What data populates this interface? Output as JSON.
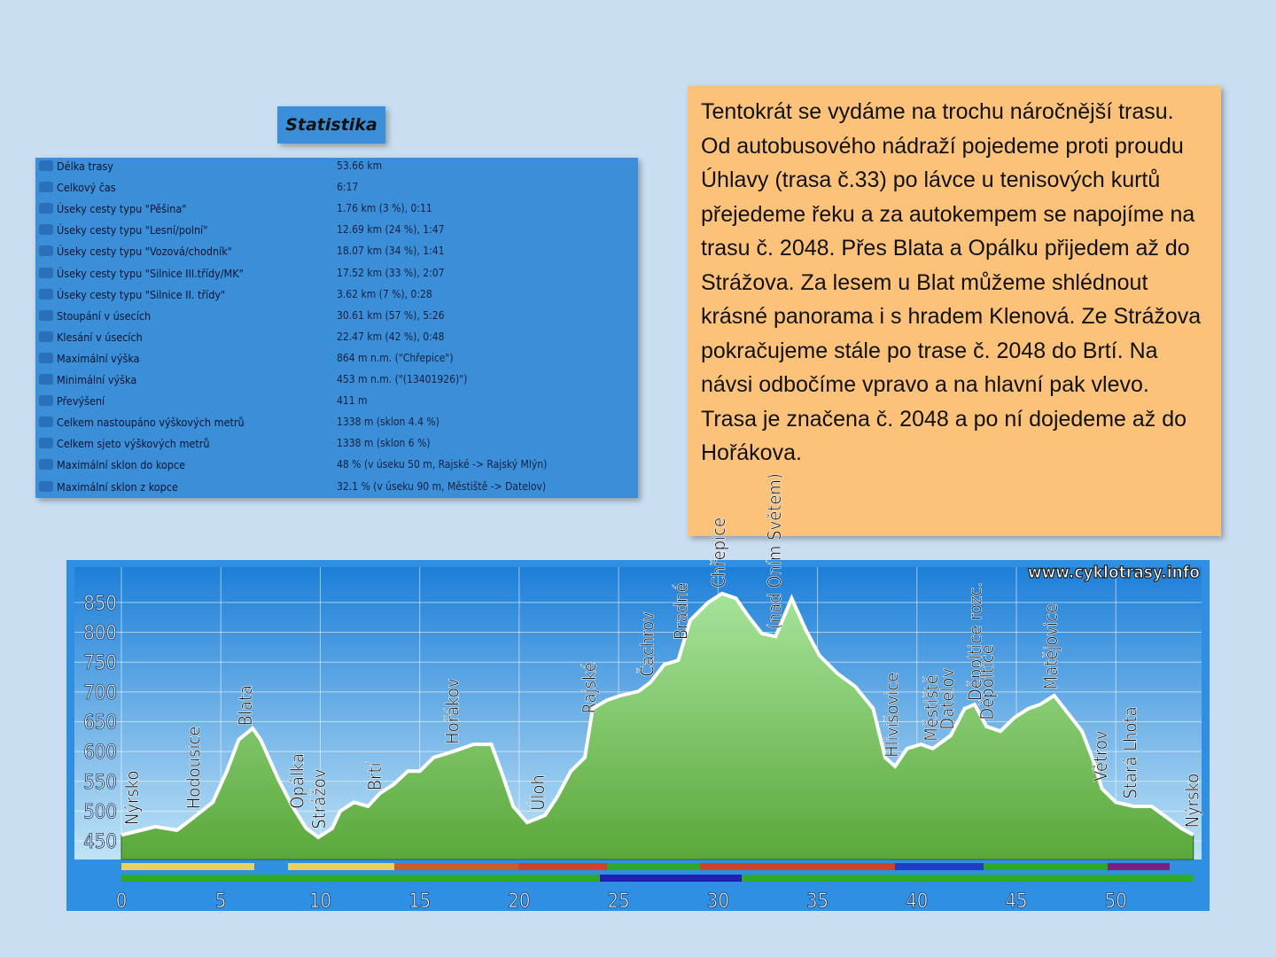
{
  "statistics": {
    "title": "Statistika",
    "rows": [
      [
        "Délka trasy",
        "53.66 km"
      ],
      [
        "Celkový čas",
        "6:17"
      ],
      [
        "Úseky cesty typu \"Pěšina\"",
        "1.76 km (3 %), 0:11"
      ],
      [
        "Úseky cesty typu \"Lesní/polní\"",
        "12.69 km (24 %), 1:47"
      ],
      [
        "Úseky cesty typu \"Vozová/chodník\"",
        "18.07 km (34 %), 1:41"
      ],
      [
        "Úseky cesty typu \"Silnice III.třídy/MK\"",
        "17.52 km (33 %), 2:07"
      ],
      [
        "Úseky cesty typu \"Silnice II. třídy\"",
        "3.62 km (7 %), 0:28"
      ],
      [
        "Stoupání v úsecích",
        "30.61 km (57 %), 5:26"
      ],
      [
        "Klesání v úsecích",
        "22.47 km (42 %), 0:48"
      ],
      [
        "Maximální výška",
        "864 m n.m. (\"Chřepice\")"
      ],
      [
        "Minimální výška",
        "453 m n.m. (\"(13401926)\")"
      ],
      [
        "Převýšení",
        "411 m"
      ],
      [
        "Celkem nastoupáno výškových metrů",
        "1338 m (sklon 4.4 %)"
      ],
      [
        "Celkem sjeto výškových metrů",
        "1338 m (sklon 6 %)"
      ],
      [
        "Maximální sklon do kopce",
        "48 % (v úseku 50 m, Rajské -> Rajský Mlýn)"
      ],
      [
        "Maximální sklon z kopce",
        "32.1 % (v úseku 90 m, Městiště -> Datelov)"
      ]
    ]
  },
  "description": "Tentokrát se vydáme na trochu náročnější trasu. Od autobusového nádraží pojedeme proti proudu Úhlavy (trasa č.33) po lávce u tenisových kurtů přejedeme řeku a za autokempem se napojíme na trasu č. 2048. Přes Blata a Opálku přijedem až do Strážova. Za lesem u Blat můžeme shlédnout krásné panorama i s hradem Klenová. Ze Strážova pokračujeme stále po trase č. 2048 do Brtí. Na návsi odbočíme vpravo a na hlavní pak vlevo. Trasa je značena č. 2048 a po ní dojedeme až do Hořákova.",
  "chart_data": {
    "type": "area",
    "watermark": "www.cyklotrasy.info",
    "color": "#6cc34a",
    "line_color": "#ffffff",
    "x": [
      0,
      1.0,
      1.7,
      2.8,
      3.5,
      4.6,
      5.3,
      5.9,
      6.6,
      7.0,
      7.9,
      8.6,
      9.3,
      9.9,
      10.6,
      11.0,
      11.7,
      12.4,
      13.0,
      13.7,
      14.4,
      15.0,
      15.7,
      16.4,
      17.1,
      17.7,
      18.6,
      19.1,
      19.7,
      20.4,
      21.3,
      21.9,
      22.6,
      23.3,
      23.7,
      24.4,
      25.1,
      26.0,
      26.6,
      27.3,
      28.0,
      28.6,
      29.5,
      30.2,
      30.9,
      31.5,
      32.2,
      32.9,
      33.7,
      34.4,
      35.1,
      36.0,
      36.9,
      37.8,
      38.4,
      38.9,
      39.5,
      40.2,
      40.8,
      41.7,
      42.4,
      42.9,
      43.5,
      44.2,
      44.9,
      45.6,
      46.2,
      46.9,
      47.6,
      48.3,
      48.9,
      49.3,
      50.0,
      50.9,
      51.8,
      52.7,
      53.3,
      53.9
    ],
    "values": [
      460,
      468,
      474,
      468,
      486,
      515,
      567,
      620,
      639,
      620,
      553,
      508,
      471,
      456,
      471,
      500,
      515,
      508,
      530,
      545,
      567,
      567,
      590,
      597,
      605,
      612,
      612,
      567,
      508,
      481,
      493,
      523,
      567,
      590,
      672,
      686,
      694,
      701,
      716,
      746,
      753,
      820,
      850,
      865,
      857,
      828,
      798,
      793,
      857,
      805,
      761,
      731,
      709,
      672,
      590,
      575,
      605,
      612,
      605,
      627,
      672,
      679,
      642,
      634,
      657,
      672,
      679,
      694,
      664,
      634,
      582,
      538,
      515,
      508,
      508,
      486,
      471,
      460
    ],
    "xlim": [
      0,
      54
    ],
    "ylim": [
      430,
      890
    ],
    "xticks": [
      0,
      5,
      10,
      15,
      20,
      25,
      30,
      35,
      40,
      45,
      50
    ],
    "yticks": [
      450,
      500,
      550,
      600,
      650,
      700,
      750,
      800,
      850
    ],
    "grid": true,
    "annotations": [
      {
        "text": "Nýrsko",
        "x": 0.6
      },
      {
        "text": "Hodousice",
        "x": 3.7
      },
      {
        "text": "Blata",
        "x": 6.3
      },
      {
        "text": "Opálka",
        "x": 8.9
      },
      {
        "text": "Strážov",
        "x": 10.0
      },
      {
        "text": "Brtí",
        "x": 12.8
      },
      {
        "text": "Hořákov",
        "x": 16.7
      },
      {
        "text": "Úloh",
        "x": 21.0
      },
      {
        "text": "Rajské",
        "x": 23.6
      },
      {
        "text": "Čachrov",
        "x": 26.5
      },
      {
        "text": "Bradné",
        "x": 28.2
      },
      {
        "text": "Chřepice",
        "x": 30.1
      },
      {
        "text": "(nad Oním Světem)",
        "x": 32.9
      },
      {
        "text": "Hlivišovice",
        "x": 38.8
      },
      {
        "text": "Městiště",
        "x": 40.8
      },
      {
        "text": "Datelov",
        "x": 41.6
      },
      {
        "text": "Děpoltice rozc.",
        "x": 43.0
      },
      {
        "text": "Děpoltice",
        "x": 43.6
      },
      {
        "text": "Matějovice",
        "x": 46.8
      },
      {
        "text": "Větrov",
        "x": 49.3
      },
      {
        "text": "Stará Lhota",
        "x": 50.8
      },
      {
        "text": "Nýrsko",
        "x": 53.9
      }
    ]
  }
}
